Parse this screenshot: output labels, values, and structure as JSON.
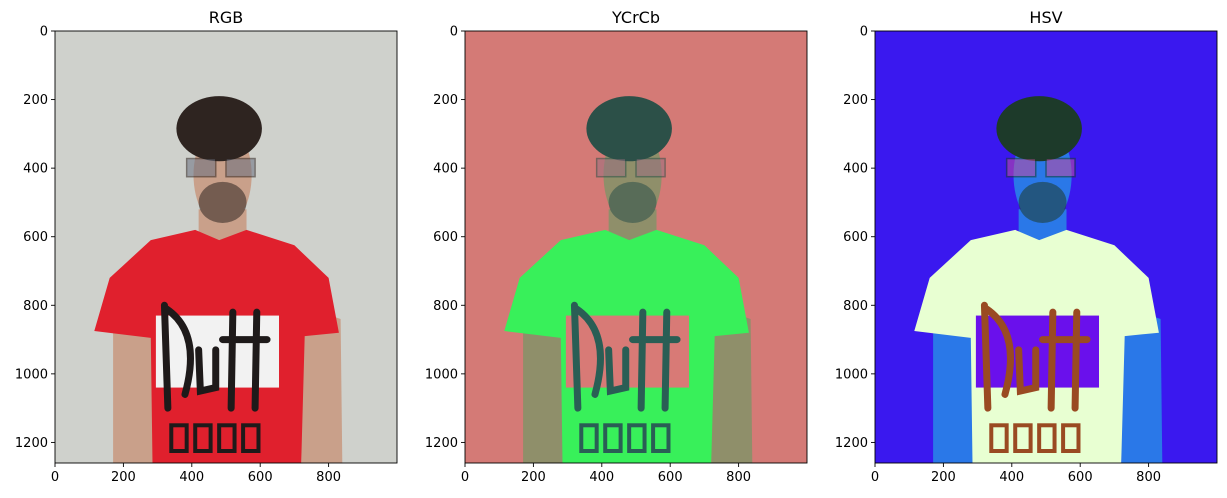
{
  "chart_data": [
    {
      "type": "image",
      "title": "RGB",
      "xlim": [
        0,
        1000
      ],
      "ylim": [
        1260,
        0
      ],
      "xticks": [
        0,
        200,
        400,
        600,
        800
      ],
      "yticks": [
        0,
        200,
        400,
        600,
        800,
        1000,
        1200
      ],
      "colors": {
        "background": "#cfd1cc",
        "skin": "#c9a08a",
        "hair": "#2e2420",
        "shirt": "#e0202d",
        "logo_panel": "#f2f2f2",
        "logo_text": "#1e1a1a",
        "glasses": "#6a6f80"
      }
    },
    {
      "type": "image",
      "title": "YCrCb",
      "xlim": [
        0,
        1000
      ],
      "ylim": [
        1260,
        0
      ],
      "xticks": [
        0,
        200,
        400,
        600,
        800
      ],
      "yticks": [
        0,
        200,
        400,
        600,
        800,
        1000,
        1200
      ],
      "colors": {
        "background": "#d47a76",
        "skin": "#8f8f6a",
        "hair": "#2c5048",
        "shirt": "#38f05a",
        "logo_panel": "#d87a76",
        "logo_text": "#2a5e55",
        "glasses": "#9a7080"
      }
    },
    {
      "type": "image",
      "title": "HSV",
      "xlim": [
        0,
        1000
      ],
      "ylim": [
        1260,
        0
      ],
      "xticks": [
        0,
        200,
        400,
        600,
        800
      ],
      "yticks": [
        0,
        200,
        400,
        600,
        800,
        1000,
        1200
      ],
      "colors": {
        "background": "#3a18ef",
        "skin": "#2a78e8",
        "hair": "#1d3a2a",
        "shirt": "#e8ffd2",
        "logo_panel": "#6a10ec",
        "logo_text": "#9a4a22",
        "glasses": "#c44aa0"
      }
    }
  ]
}
